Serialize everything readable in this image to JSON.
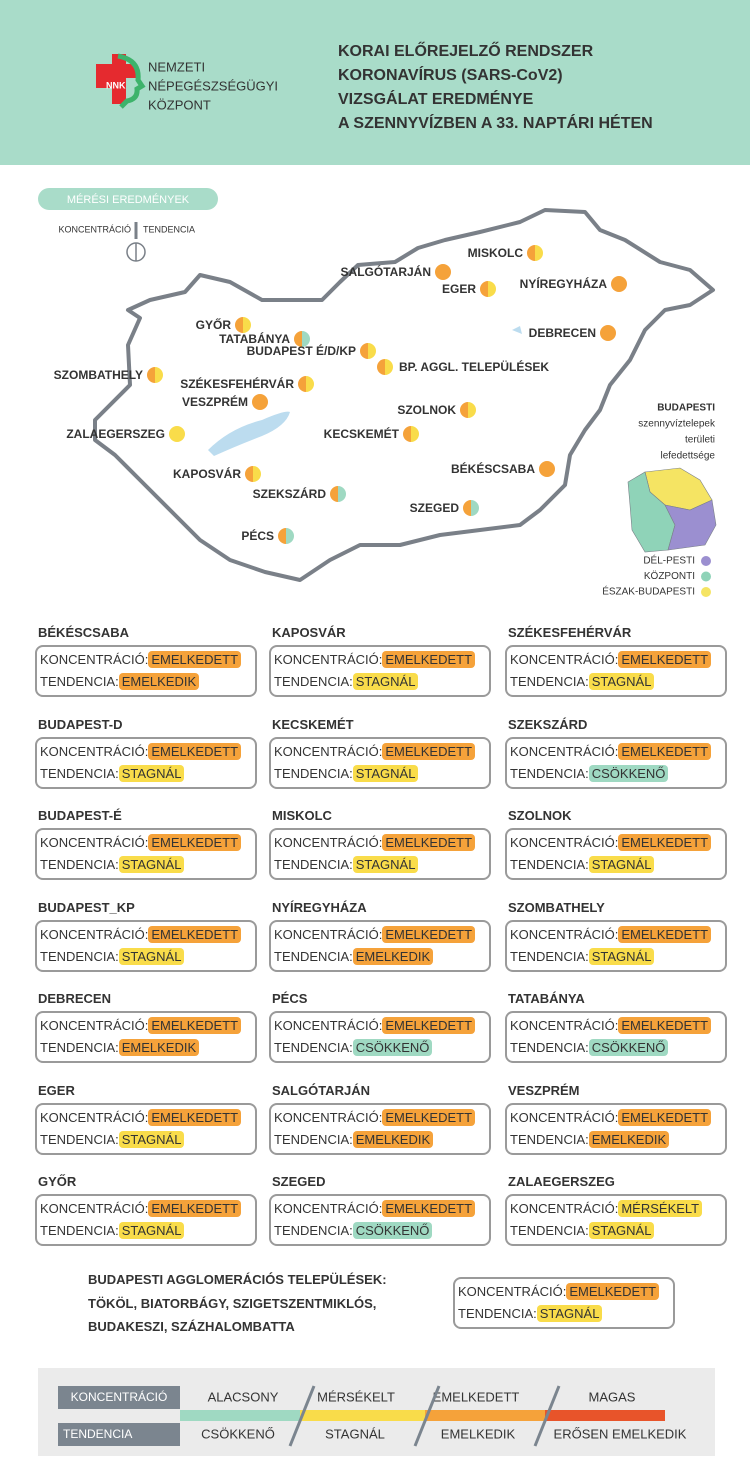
{
  "header": {
    "logo_text": "NNK",
    "organization": [
      "NEMZETI",
      "NÉPEGÉSZSÉGÜGYI",
      "KÖZPONT"
    ],
    "title": [
      "KORAI ELŐREJELZŐ RENDSZER",
      "KORONAVÍRUS (SARS-CoV2)",
      "VIZSGÁLAT EREDMÉNYE",
      "A SZENNYVÍZBEN A 33. NAPTÁRI HÉTEN"
    ]
  },
  "map": {
    "legend_title": "MÉRÉSI EREDMÉNYEK",
    "legend_left": "KONCENTRÁCIÓ",
    "legend_right": "TENDENCIA",
    "cities": [
      {
        "label": "MISKOLC",
        "colors": [
          "#f5a23a",
          "#f9dc4a"
        ]
      },
      {
        "label": "SALGÓTARJÁN",
        "colors": [
          "#f5a23a",
          "#f5a23a"
        ]
      },
      {
        "label": "EGER",
        "colors": [
          "#f5a23a",
          "#f9dc4a"
        ]
      },
      {
        "label": "NYÍREGYHÁZA",
        "colors": [
          "#f5a23a",
          "#f5a23a"
        ]
      },
      {
        "label": "DEBRECEN",
        "colors": [
          "#f5a23a",
          "#f5a23a"
        ]
      },
      {
        "label": "GYŐR",
        "colors": [
          "#f5a23a",
          "#f9dc4a"
        ]
      },
      {
        "label": "TATABÁNYA",
        "colors": [
          "#f5a23a",
          "#9fd9c2"
        ]
      },
      {
        "label": "BUDAPEST É/D/KP",
        "colors": [
          "#f5a23a",
          "#f9dc4a"
        ]
      },
      {
        "label": "BP. AGGL. TELEPÜLÉSEK",
        "colors": [
          "#f5a23a",
          "#f9dc4a"
        ]
      },
      {
        "label": "SZOMBATHELY",
        "colors": [
          "#f5a23a",
          "#f9dc4a"
        ]
      },
      {
        "label": "SZÉKESFEHÉRVÁR",
        "colors": [
          "#f5a23a",
          "#f9dc4a"
        ]
      },
      {
        "label": "VESZPRÉM",
        "colors": [
          "#f5a23a",
          "#f5a23a"
        ]
      },
      {
        "label": "SZOLNOK",
        "colors": [
          "#f5a23a",
          "#f9dc4a"
        ]
      },
      {
        "label": "ZALAEGERSZEG",
        "colors": [
          "#f9dc4a",
          "#f9dc4a"
        ]
      },
      {
        "label": "KECSKEMÉT",
        "colors": [
          "#f5a23a",
          "#f9dc4a"
        ]
      },
      {
        "label": "BÉKÉSCSABA",
        "colors": [
          "#f5a23a",
          "#f5a23a"
        ]
      },
      {
        "label": "KAPOSVÁR",
        "colors": [
          "#f5a23a",
          "#f9dc4a"
        ]
      },
      {
        "label": "SZEKSZÁRD",
        "colors": [
          "#f5a23a",
          "#9fd9c2"
        ]
      },
      {
        "label": "SZEGED",
        "colors": [
          "#f5a23a",
          "#9fd9c2"
        ]
      },
      {
        "label": "PÉCS",
        "colors": [
          "#f5a23a",
          "#9fd9c2"
        ]
      }
    ],
    "budapest_inset": {
      "title": [
        "BUDAPESTI",
        "szennyvíztelepek",
        "területi",
        "lefedettsége"
      ],
      "areas": [
        {
          "name": "DÉL-PESTI",
          "color": "#9b8fd0"
        },
        {
          "name": "KÖZPONTI",
          "color": "#8fd3b8"
        },
        {
          "name": "ÉSZAK-BUDAPESTI",
          "color": "#f5e463"
        }
      ]
    }
  },
  "card_labels": {
    "concentration": "KONCENTRÁCIÓ:",
    "tendency": "TENDENCIA:"
  },
  "cards": [
    {
      "name": "BÉKÉSCSABA",
      "concentration": "EMELKEDETT",
      "tendency": "EMELKEDIK"
    },
    {
      "name": "BUDAPEST-D",
      "concentration": "EMELKEDETT",
      "tendency": "STAGNÁL"
    },
    {
      "name": "BUDAPEST-É",
      "concentration": "EMELKEDETT",
      "tendency": "STAGNÁL"
    },
    {
      "name": "BUDAPEST_KP",
      "concentration": "EMELKEDETT",
      "tendency": "STAGNÁL"
    },
    {
      "name": "DEBRECEN",
      "concentration": "EMELKEDETT",
      "tendency": "EMELKEDIK"
    },
    {
      "name": "EGER",
      "concentration": "EMELKEDETT",
      "tendency": "STAGNÁL"
    },
    {
      "name": "GYŐR",
      "concentration": "EMELKEDETT",
      "tendency": "STAGNÁL"
    },
    {
      "name": "KAPOSVÁR",
      "concentration": "EMELKEDETT",
      "tendency": "STAGNÁL"
    },
    {
      "name": "KECSKEMÉT",
      "concentration": "EMELKEDETT",
      "tendency": "STAGNÁL"
    },
    {
      "name": "MISKOLC",
      "concentration": "EMELKEDETT",
      "tendency": "STAGNÁL"
    },
    {
      "name": "NYÍREGYHÁZA",
      "concentration": "EMELKEDETT",
      "tendency": "EMELKEDIK"
    },
    {
      "name": "PÉCS",
      "concentration": "EMELKEDETT",
      "tendency": "CSÖKKENŐ"
    },
    {
      "name": "SALGÓTARJÁN",
      "concentration": "EMELKEDETT",
      "tendency": "EMELKEDIK"
    },
    {
      "name": "SZEGED",
      "concentration": "EMELKEDETT",
      "tendency": "CSÖKKENŐ"
    },
    {
      "name": "SZÉKESFEHÉRVÁR",
      "concentration": "EMELKEDETT",
      "tendency": "STAGNÁL"
    },
    {
      "name": "SZEKSZÁRD",
      "concentration": "EMELKEDETT",
      "tendency": "CSÖKKENŐ"
    },
    {
      "name": "SZOLNOK",
      "concentration": "EMELKEDETT",
      "tendency": "STAGNÁL"
    },
    {
      "name": "SZOMBATHELY",
      "concentration": "EMELKEDETT",
      "tendency": "STAGNÁL"
    },
    {
      "name": "TATABÁNYA",
      "concentration": "EMELKEDETT",
      "tendency": "CSÖKKENŐ"
    },
    {
      "name": "VESZPRÉM",
      "concentration": "EMELKEDETT",
      "tendency": "EMELKEDIK"
    },
    {
      "name": "ZALAEGERSZEG",
      "concentration": "MÉRSÉKELT",
      "tendency": "STAGNÁL"
    }
  ],
  "agglomeration": {
    "text": [
      "BUDAPESTI AGGLOMERÁCIÓS TELEPÜLÉSEK:",
      "TÖKÖL, BIATORBÁGY, SZIGETSZENTMIKLÓS,",
      "BUDAKESZI, SZÁZHALOMBATTA"
    ],
    "concentration": "EMELKEDETT",
    "tendency": "STAGNÁL"
  },
  "legend": {
    "concentration_label": "KONCENTRÁCIÓ",
    "tendency_label": "TENDENCIA",
    "levels": [
      {
        "concentration": "ALACSONY",
        "tendency": "CSÖKKENŐ",
        "color": "#9fd9c2"
      },
      {
        "concentration": "MÉRSÉKELT",
        "tendency": "STAGNÁL",
        "color": "#f9dc4a"
      },
      {
        "concentration": "EMELKEDETT",
        "tendency": "EMELKEDIK",
        "color": "#f5a23a"
      },
      {
        "concentration": "MAGAS",
        "tendency": "ERŐSEN EMELKEDIK",
        "color": "#e8542a"
      }
    ]
  }
}
